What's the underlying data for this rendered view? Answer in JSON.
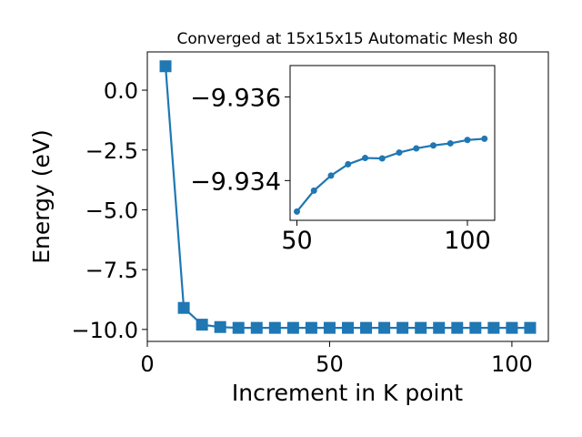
{
  "chart_data": [
    {
      "type": "line",
      "title": "Converged at 15x15x15 Automatic Mesh 80",
      "xlabel": "Increment in K point",
      "ylabel": "Energy (eV)",
      "xlim": [
        0,
        110
      ],
      "ylim": [
        -10.5,
        1.6
      ],
      "grid": false,
      "marker": "square",
      "color": "#1f77b4",
      "xticks": [
        0,
        50,
        100
      ],
      "yticks": [
        0.0,
        -2.5,
        -5.0,
        -7.5,
        -10.0
      ],
      "xtick_labels": [
        "0",
        "50",
        "100"
      ],
      "ytick_labels": [
        "0.0",
        "−2.5",
        "−5.0",
        "−7.5",
        "−10.0"
      ],
      "series": [
        {
          "x": [
            5,
            10,
            15,
            20,
            25,
            30,
            35,
            40,
            45,
            50,
            55,
            60,
            65,
            70,
            75,
            80,
            85,
            90,
            95,
            100,
            105
          ],
          "y": [
            1.0,
            -9.1,
            -9.8,
            -9.9,
            -9.934,
            -9.934,
            -9.934,
            -9.934,
            -9.934,
            -9.934,
            -9.934,
            -9.934,
            -9.934,
            -9.934,
            -9.934,
            -9.934,
            -9.934,
            -9.934,
            -9.934,
            -9.934,
            -9.934
          ]
        }
      ]
    },
    {
      "type": "line",
      "title": "",
      "xlabel": "",
      "ylabel": "",
      "xlim": [
        48,
        108
      ],
      "ylim": [
        -9.93305,
        -9.93675
      ],
      "grid": false,
      "marker": "circle",
      "color": "#1f77b4",
      "xticks": [
        50,
        100
      ],
      "yticks": [
        -9.936,
        -9.934
      ],
      "xtick_labels": [
        "50",
        "100"
      ],
      "ytick_labels": [
        "−9.936",
        "−9.934"
      ],
      "series": [
        {
          "x": [
            50,
            55,
            60,
            65,
            70,
            75,
            80,
            85,
            90,
            95,
            100,
            105
          ],
          "y": [
            -9.93326,
            -9.93376,
            -9.93412,
            -9.93439,
            -9.93454,
            -9.93453,
            -9.93467,
            -9.93477,
            -9.93484,
            -9.93489,
            -9.93497,
            -9.935
          ]
        }
      ]
    }
  ]
}
